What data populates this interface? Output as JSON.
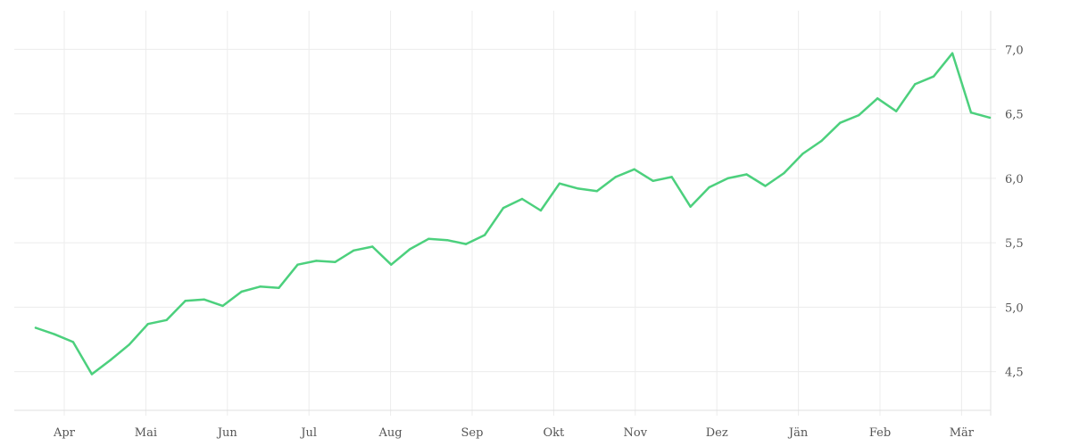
{
  "chart_data": {
    "type": "line",
    "title": "",
    "xlabel": "",
    "ylabel": "",
    "x_tick_labels": [
      "Apr",
      "Mai",
      "Jun",
      "Jul",
      "Aug",
      "Sep",
      "Okt",
      "Nov",
      "Dez",
      "Jän",
      "Feb",
      "Mär"
    ],
    "y_tick_labels": [
      "4,5",
      "5,0",
      "5,5",
      "6,0",
      "6,5",
      "7,0"
    ],
    "y_ticks": [
      4.5,
      5.0,
      5.5,
      6.0,
      6.5,
      7.0
    ],
    "ylim": [
      4.2,
      7.3
    ],
    "y_axis_position": "right",
    "grid": true,
    "legend": "none",
    "series": [
      {
        "color": "#4cd07d",
        "values": [
          4.84,
          4.79,
          4.73,
          4.48,
          4.59,
          4.71,
          4.87,
          4.9,
          5.05,
          5.06,
          5.01,
          5.12,
          5.16,
          5.15,
          5.33,
          5.36,
          5.35,
          5.44,
          5.47,
          5.33,
          5.45,
          5.53,
          5.52,
          5.49,
          5.56,
          5.77,
          5.84,
          5.75,
          5.96,
          5.92,
          5.9,
          6.01,
          6.07,
          5.98,
          6.01,
          5.78,
          5.93,
          6.0,
          6.03,
          5.94,
          6.04,
          6.19,
          6.29,
          6.43,
          6.49,
          6.62,
          6.52,
          6.73,
          6.79,
          6.97,
          6.51,
          6.47
        ]
      }
    ]
  }
}
